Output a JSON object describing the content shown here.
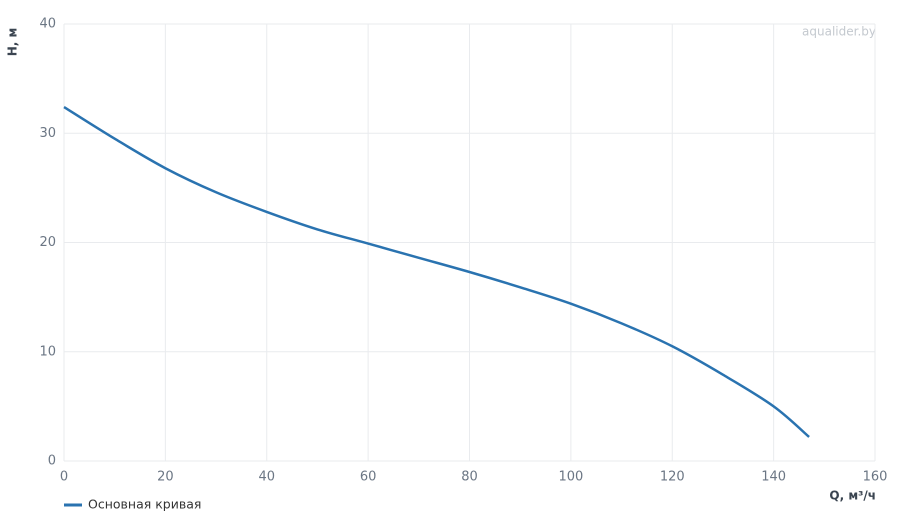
{
  "chart_data": {
    "type": "line",
    "x": [
      0,
      10,
      20,
      30,
      40,
      50,
      60,
      70,
      80,
      90,
      100,
      110,
      120,
      130,
      140,
      147
    ],
    "series": [
      {
        "name": "Основная кривая",
        "color": "#2a73b0",
        "values": [
          32.4,
          29.5,
          26.8,
          24.6,
          22.8,
          21.2,
          19.9,
          18.6,
          17.3,
          15.9,
          14.4,
          12.6,
          10.5,
          7.9,
          5.0,
          2.2
        ]
      }
    ],
    "xlim": [
      0,
      160
    ],
    "ylim": [
      0,
      40
    ],
    "xticks": [
      0,
      20,
      40,
      60,
      80,
      100,
      120,
      140,
      160
    ],
    "yticks": [
      0,
      10,
      20,
      30,
      40
    ],
    "x_label": "Q, м³/ч",
    "y_label": "H, м",
    "watermark": "aqualider.by",
    "grid": true
  }
}
